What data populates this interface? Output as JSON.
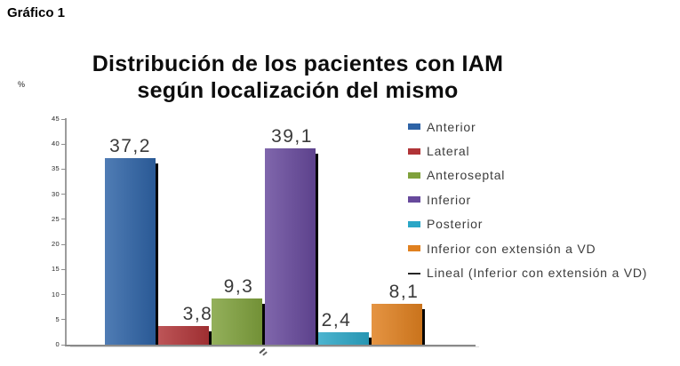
{
  "figure": {
    "label": "Gráfico 1"
  },
  "chart_data": {
    "type": "bar",
    "title": "Distribución de los pacientes con IAM según localización del mismo",
    "title_lines": [
      "Distribución de los pacientes con IAM",
      "según localización del mismo"
    ],
    "xlabel": "",
    "ylabel": "%",
    "ylim": [
      0,
      45
    ],
    "ytick_step": 5,
    "grid": false,
    "legend_position": "right",
    "categories": [
      "Anterior",
      "Lateral",
      "Anteroseptal",
      "Inferior",
      "Posterior",
      "Inferior con extensión a VD"
    ],
    "values": [
      37.2,
      3.8,
      9.3,
      39.1,
      2.4,
      8.1
    ],
    "value_labels": [
      "37,2",
      "3,8",
      "9,3",
      "39,1",
      "2,4",
      "8,1"
    ],
    "colors": [
      "#2E63A6",
      "#B03437",
      "#7FA13C",
      "#67499C",
      "#2BA6C6",
      "#E0801F"
    ],
    "label_dx": [
      0,
      16,
      2,
      2,
      -8,
      8
    ],
    "legend": [
      {
        "label": "Anterior",
        "color": "#2E63A6",
        "swatch": "box"
      },
      {
        "label": "Lateral",
        "color": "#B03437",
        "swatch": "box"
      },
      {
        "label": "Anteroseptal",
        "color": "#7FA13C",
        "swatch": "box"
      },
      {
        "label": "Inferior",
        "color": "#67499C",
        "swatch": "box"
      },
      {
        "label": "Posterior",
        "color": "#2BA6C6",
        "swatch": "box"
      },
      {
        "label": "Inferior con extensión a VD",
        "color": "#E0801F",
        "swatch": "box"
      },
      {
        "label": "Lineal (Inferior con extensión a VD)",
        "color": "#262626",
        "swatch": "line"
      }
    ]
  }
}
